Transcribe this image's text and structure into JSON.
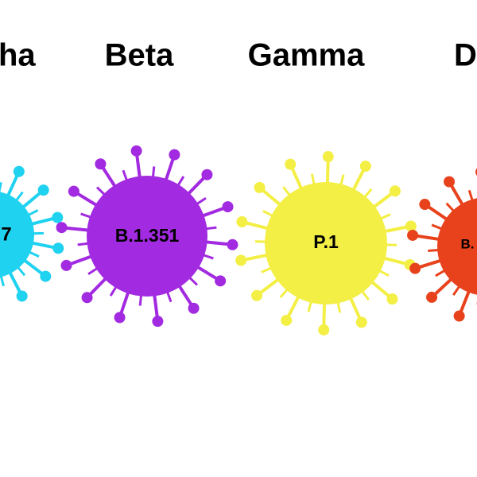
{
  "variants": [
    {
      "name": "ha",
      "lineage": "7"
    },
    {
      "name": "Beta",
      "lineage": "B.1.351"
    },
    {
      "name": "Gamma",
      "lineage": "P.1"
    },
    {
      "name": "D",
      "lineage": "B."
    }
  ]
}
